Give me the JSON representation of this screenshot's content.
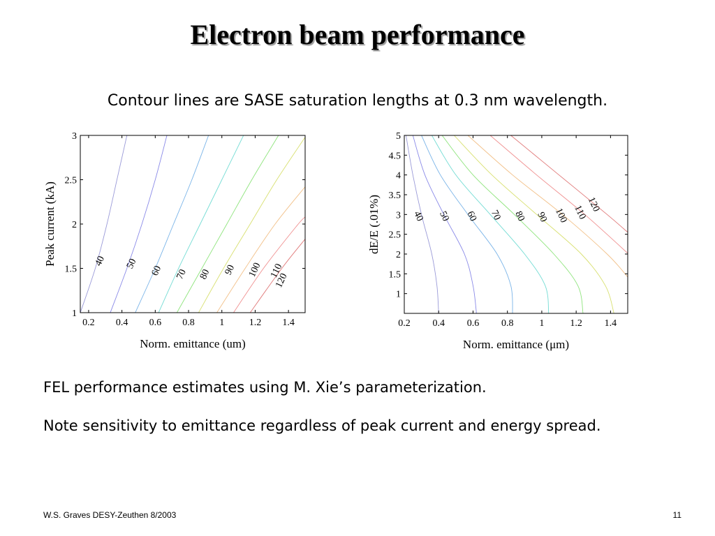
{
  "slide": {
    "title": "Electron beam performance",
    "subtitle": "Contour lines are SASE saturation lengths at 0.3 nm wavelength.",
    "notes": [
      "FEL performance estimates using M. Xie’s parameterization.",
      "Note sensitivity to emittance regardless of peak current and energy spread."
    ],
    "footer": "W.S. Graves DESY-Zeuthen 8/2003",
    "page_number": "11"
  },
  "chart_data": [
    {
      "type": "contour",
      "xlabel": "Norm. emittance (um)",
      "ylabel": "Peak current (kA)",
      "xlim": [
        0.15,
        1.5
      ],
      "ylim": [
        1,
        3
      ],
      "x_ticks": [
        "0.2",
        "0.4",
        "0.6",
        "0.8",
        "1",
        "1.2",
        "1.4"
      ],
      "y_ticks": [
        "1",
        "1.5",
        "2",
        "2.5",
        "3"
      ],
      "levels": [
        {
          "level": "40",
          "color": "#9a9ad8",
          "points": [
            [
              0.15,
              1.0
            ],
            [
              0.24,
              1.5
            ],
            [
              0.31,
              2.0
            ],
            [
              0.37,
              2.5
            ],
            [
              0.43,
              3.0
            ]
          ],
          "label_at": [
            0.27,
            1.58
          ]
        },
        {
          "level": "50",
          "color": "#8a8ae8",
          "points": [
            [
              0.33,
              1.0
            ],
            [
              0.43,
              1.5
            ],
            [
              0.52,
              2.0
            ],
            [
              0.6,
              2.5
            ],
            [
              0.67,
              3.0
            ]
          ],
          "label_at": [
            0.46,
            1.55
          ]
        },
        {
          "level": "60",
          "color": "#7ab4e8",
          "points": [
            [
              0.48,
              1.0
            ],
            [
              0.6,
              1.5
            ],
            [
              0.71,
              2.0
            ],
            [
              0.82,
              2.5
            ],
            [
              0.92,
              3.0
            ]
          ],
          "label_at": [
            0.61,
            1.47
          ]
        },
        {
          "level": "70",
          "color": "#74dcd4",
          "points": [
            [
              0.62,
              1.0
            ],
            [
              0.74,
              1.5
            ],
            [
              0.87,
              2.0
            ],
            [
              1.0,
              2.5
            ],
            [
              1.13,
              3.0
            ]
          ],
          "label_at": [
            0.76,
            1.43
          ]
        },
        {
          "level": "80",
          "color": "#8ee47c",
          "points": [
            [
              0.73,
              1.0
            ],
            [
              0.88,
              1.5
            ],
            [
              1.03,
              2.0
            ],
            [
              1.18,
              2.5
            ],
            [
              1.34,
              3.0
            ]
          ],
          "label_at": [
            0.9,
            1.43
          ]
        },
        {
          "level": "90",
          "color": "#d8e070",
          "points": [
            [
              0.86,
              1.0
            ],
            [
              1.01,
              1.5
            ],
            [
              1.17,
              2.0
            ],
            [
              1.33,
              2.5
            ],
            [
              1.5,
              2.98
            ]
          ],
          "label_at": [
            1.05,
            1.48
          ]
        },
        {
          "level": "100",
          "color": "#f2c088",
          "points": [
            [
              0.97,
              1.0
            ],
            [
              1.14,
              1.5
            ],
            [
              1.32,
              2.0
            ],
            [
              1.5,
              2.42
            ]
          ],
          "label_at": [
            1.2,
            1.48
          ]
        },
        {
          "level": "110",
          "color": "#f09090",
          "points": [
            [
              1.07,
              1.0
            ],
            [
              1.25,
              1.5
            ],
            [
              1.45,
              1.98
            ],
            [
              1.5,
              2.08
            ]
          ],
          "label_at": [
            1.33,
            1.47
          ]
        },
        {
          "level": "120",
          "color": "#e07878",
          "points": [
            [
              1.17,
              1.0
            ],
            [
              1.36,
              1.5
            ],
            [
              1.5,
              1.83
            ]
          ],
          "label_at": [
            1.36,
            1.36
          ]
        }
      ]
    },
    {
      "type": "contour",
      "xlabel": "Norm. emittance (μm)",
      "ylabel": "dE/E (.01%)",
      "xlim": [
        0.2,
        1.5
      ],
      "ylim": [
        0.5,
        5
      ],
      "x_ticks": [
        "0.2",
        "0.4",
        "0.6",
        "0.8",
        "1",
        "1.2",
        "1.4"
      ],
      "y_ticks": [
        "1",
        "1.5",
        "2",
        "2.5",
        "3",
        "3.5",
        "4",
        "4.5",
        "5"
      ],
      "levels": [
        {
          "level": "40",
          "color": "#9a9ad8",
          "points": [
            [
              0.21,
              5.0
            ],
            [
              0.25,
              4.0
            ],
            [
              0.3,
              3.0
            ],
            [
              0.36,
              2.0
            ],
            [
              0.39,
              1.2
            ],
            [
              0.4,
              0.5
            ]
          ],
          "label_at": [
            0.28,
            2.95
          ]
        },
        {
          "level": "50",
          "color": "#8a8ae8",
          "points": [
            [
              0.25,
              5.0
            ],
            [
              0.32,
              4.0
            ],
            [
              0.43,
              3.0
            ],
            [
              0.55,
              2.0
            ],
            [
              0.6,
              1.2
            ],
            [
              0.62,
              0.5
            ]
          ],
          "label_at": [
            0.43,
            2.95
          ]
        },
        {
          "level": "60",
          "color": "#7ab4e8",
          "points": [
            [
              0.3,
              5.0
            ],
            [
              0.41,
              4.0
            ],
            [
              0.57,
              3.0
            ],
            [
              0.74,
              2.0
            ],
            [
              0.82,
              1.2
            ],
            [
              0.83,
              0.5
            ]
          ],
          "label_at": [
            0.59,
            2.95
          ]
        },
        {
          "level": "70",
          "color": "#74dcd4",
          "points": [
            [
              0.36,
              5.0
            ],
            [
              0.5,
              4.0
            ],
            [
              0.7,
              3.0
            ],
            [
              0.9,
              2.0
            ],
            [
              1.02,
              1.2
            ],
            [
              1.04,
              0.5
            ]
          ],
          "label_at": [
            0.73,
            2.98
          ]
        },
        {
          "level": "80",
          "color": "#8ee47c",
          "points": [
            [
              0.42,
              5.0
            ],
            [
              0.6,
              4.0
            ],
            [
              0.84,
              3.0
            ],
            [
              1.07,
              2.0
            ],
            [
              1.21,
              1.2
            ],
            [
              1.24,
              0.5
            ]
          ],
          "label_at": [
            0.87,
            2.95
          ]
        },
        {
          "level": "90",
          "color": "#d8e070",
          "points": [
            [
              0.49,
              5.0
            ],
            [
              0.71,
              4.0
            ],
            [
              0.97,
              3.0
            ],
            [
              1.23,
              2.0
            ],
            [
              1.37,
              1.2
            ],
            [
              1.42,
              0.5
            ]
          ],
          "label_at": [
            1.0,
            2.93
          ]
        },
        {
          "level": "100",
          "color": "#f2c088",
          "points": [
            [
              0.57,
              5.0
            ],
            [
              0.83,
              4.0
            ],
            [
              1.12,
              3.0
            ],
            [
              1.38,
              2.0
            ],
            [
              1.5,
              1.42
            ]
          ],
          "label_at": [
            1.11,
            2.97
          ]
        },
        {
          "level": "110",
          "color": "#f09090",
          "points": [
            [
              0.7,
              5.0
            ],
            [
              0.97,
              4.0
            ],
            [
              1.25,
              3.0
            ],
            [
              1.5,
              2.02
            ]
          ],
          "label_at": [
            1.22,
            3.05
          ]
        },
        {
          "level": "120",
          "color": "#e07878",
          "points": [
            [
              0.82,
              5.0
            ],
            [
              1.1,
              4.0
            ],
            [
              1.38,
              3.0
            ],
            [
              1.5,
              2.55
            ]
          ],
          "label_at": [
            1.3,
            3.25
          ]
        }
      ]
    }
  ]
}
